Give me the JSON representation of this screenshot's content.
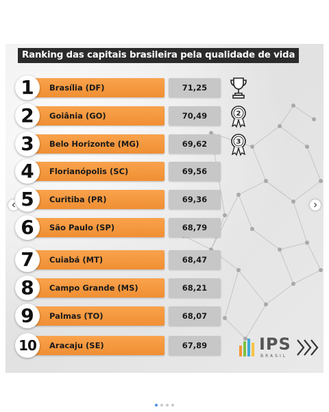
{
  "title": "Ranking das capitais brasileira pela qualidade de vida",
  "ranking": [
    {
      "rank": "1",
      "city": "Brasília (DF)",
      "score": "71,25"
    },
    {
      "rank": "2",
      "city": "Goiânia (GO)",
      "score": "70,49"
    },
    {
      "rank": "3",
      "city": "Belo Horizonte (MG)",
      "score": "69,62"
    },
    {
      "rank": "4",
      "city": "Florianópolis (SC)",
      "score": "69,56"
    },
    {
      "rank": "5",
      "city": "Curitiba (PR)",
      "score": "69,36"
    },
    {
      "rank": "6",
      "city": "São Paulo (SP)",
      "score": "68,79"
    },
    {
      "rank": "7",
      "city": "Cuiabá (MT)",
      "score": "68,47"
    },
    {
      "rank": "8",
      "city": "Campo Grande (MS)",
      "score": "68,21"
    },
    {
      "rank": "9",
      "city": "Palmas (TO)",
      "score": "68,07"
    },
    {
      "rank": "10",
      "city": "Aracaju (SE)",
      "score": "67,89"
    }
  ],
  "medals": {
    "second": "2",
    "third": "3"
  },
  "logo": {
    "name": "IPS",
    "subtitle": "BRASIL"
  },
  "colors": {
    "accent": "#f39538",
    "value_bg": "#c7c7c7",
    "title_bg": "#2b2b2b"
  },
  "icons": {
    "first": "trophy-icon",
    "second": "medal-icon",
    "third": "medal-icon",
    "chevrons": "triple-chevron-right-icon"
  }
}
